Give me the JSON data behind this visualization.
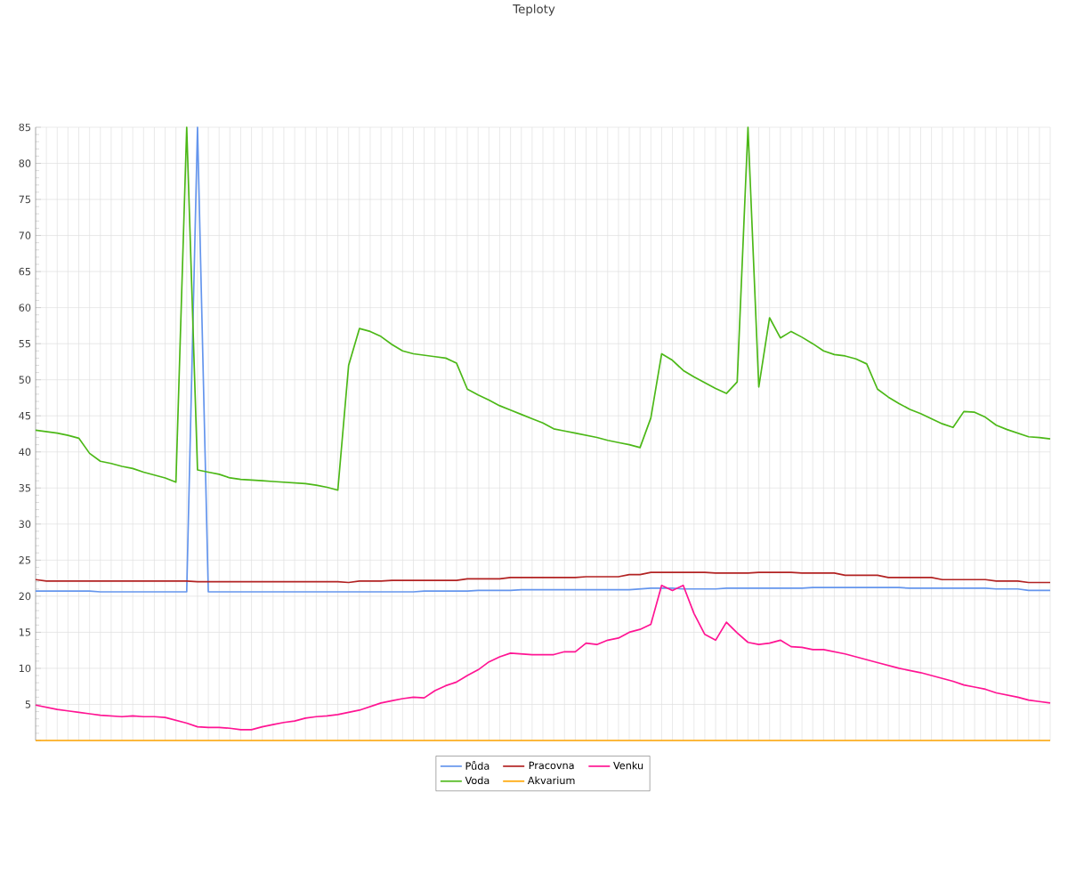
{
  "chart_data": {
    "type": "line",
    "title": "Teploty",
    "ylim": [
      0,
      85
    ],
    "yticks": [
      {
        "value": 0,
        "label": null
      },
      5,
      10,
      15,
      20,
      25,
      30,
      35,
      40,
      45,
      50,
      55,
      60,
      65,
      70,
      75,
      80,
      85
    ],
    "categories": [
      null,
      null,
      null,
      null,
      null,
      null,
      null,
      null,
      null,
      null,
      null,
      null,
      null,
      null,
      null,
      null,
      null,
      null,
      null,
      null,
      null,
      null,
      null,
      null,
      null,
      null,
      null,
      null,
      null,
      null,
      null,
      null,
      null,
      null,
      null,
      null,
      null,
      null,
      null,
      null,
      null,
      null,
      null,
      null,
      null,
      null,
      null,
      null,
      null,
      null,
      null,
      null,
      null,
      null,
      null,
      null,
      null,
      null,
      null,
      null,
      null,
      null,
      null,
      null,
      null,
      null,
      null,
      null,
      null,
      null,
      null,
      null,
      null,
      null,
      null,
      null,
      null,
      null,
      null,
      null,
      null,
      null,
      null,
      null,
      null,
      null,
      null,
      null,
      null,
      null,
      null,
      null,
      null,
      null,
      null
    ],
    "tick_labels": "y",
    "grid": true,
    "legend": "bottom",
    "marker": "none",
    "line_style": "solid",
    "series": [
      {
        "name": "Půda",
        "color": "#6495ed",
        "values": [
          20.7,
          20.7,
          20.7,
          20.7,
          20.7,
          20.7,
          20.6,
          20.6,
          20.6,
          20.6,
          20.6,
          20.6,
          20.6,
          20.6,
          20.6,
          85,
          20.6,
          20.6,
          20.6,
          20.6,
          20.6,
          20.6,
          20.6,
          20.6,
          20.6,
          20.6,
          20.6,
          20.6,
          20.6,
          20.6,
          20.6,
          20.6,
          20.6,
          20.6,
          20.6,
          20.6,
          20.7,
          20.7,
          20.7,
          20.7,
          20.7,
          20.8,
          20.8,
          20.8,
          20.8,
          20.9,
          20.9,
          20.9,
          20.9,
          20.9,
          20.9,
          20.9,
          20.9,
          20.9,
          20.9,
          20.9,
          21.0,
          21.1,
          21.1,
          21.1,
          21.0,
          21.0,
          21.0,
          21.0,
          21.1,
          21.1,
          21.1,
          21.1,
          21.1,
          21.1,
          21.1,
          21.1,
          21.2,
          21.2,
          21.2,
          21.2,
          21.2,
          21.2,
          21.2,
          21.2,
          21.2,
          21.1,
          21.1,
          21.1,
          21.1,
          21.1,
          21.1,
          21.1,
          21.1,
          21.0,
          21.0,
          21.0,
          20.8,
          20.8,
          20.8
        ]
      },
      {
        "name": "Voda",
        "color": "#4cb817",
        "values": [
          43.0,
          42.8,
          42.6,
          42.3,
          41.9,
          39.8,
          38.7,
          38.4,
          38.0,
          37.7,
          37.2,
          36.8,
          36.4,
          35.8,
          85,
          37.5,
          37.2,
          36.9,
          36.4,
          36.2,
          36.1,
          36.0,
          35.9,
          35.8,
          35.7,
          35.6,
          35.4,
          35.1,
          34.7,
          52.0,
          57.1,
          56.7,
          56.0,
          54.9,
          54.0,
          53.6,
          53.4,
          53.2,
          53.0,
          52.3,
          48.7,
          47.9,
          47.2,
          46.4,
          45.8,
          45.2,
          44.6,
          44.0,
          43.2,
          42.9,
          42.6,
          42.3,
          42.0,
          41.6,
          41.3,
          41.0,
          40.6,
          44.7,
          53.6,
          52.7,
          51.3,
          50.4,
          49.6,
          48.8,
          48.1,
          49.7,
          85,
          49.0,
          58.6,
          55.8,
          56.7,
          55.9,
          55.0,
          54.0,
          53.5,
          53.3,
          52.9,
          52.2,
          48.7,
          47.6,
          46.7,
          45.9,
          45.3,
          44.6,
          43.9,
          43.4,
          45.6,
          45.5,
          44.8,
          43.7,
          43.1,
          42.6,
          42.1,
          42.0,
          41.8
        ]
      },
      {
        "name": "Pracovna",
        "color": "#b22222",
        "values": [
          22.3,
          22.1,
          22.1,
          22.1,
          22.1,
          22.1,
          22.1,
          22.1,
          22.1,
          22.1,
          22.1,
          22.1,
          22.1,
          22.1,
          22.1,
          22.0,
          22.0,
          22.0,
          22.0,
          22.0,
          22.0,
          22.0,
          22.0,
          22.0,
          22.0,
          22.0,
          22.0,
          22.0,
          22.0,
          21.9,
          22.1,
          22.1,
          22.1,
          22.2,
          22.2,
          22.2,
          22.2,
          22.2,
          22.2,
          22.2,
          22.4,
          22.4,
          22.4,
          22.4,
          22.6,
          22.6,
          22.6,
          22.6,
          22.6,
          22.6,
          22.6,
          22.7,
          22.7,
          22.7,
          22.7,
          23.0,
          23.0,
          23.3,
          23.3,
          23.3,
          23.3,
          23.3,
          23.3,
          23.2,
          23.2,
          23.2,
          23.2,
          23.3,
          23.3,
          23.3,
          23.3,
          23.2,
          23.2,
          23.2,
          23.2,
          22.9,
          22.9,
          22.9,
          22.9,
          22.6,
          22.6,
          22.6,
          22.6,
          22.6,
          22.3,
          22.3,
          22.3,
          22.3,
          22.3,
          22.1,
          22.1,
          22.1,
          21.9,
          21.9,
          21.9
        ]
      },
      {
        "name": "Akvarium",
        "color": "#ffa500",
        "values": [
          0,
          0,
          0,
          0,
          0,
          0,
          0,
          0,
          0,
          0,
          0,
          0,
          0,
          0,
          0,
          0,
          0,
          0,
          0,
          0,
          0,
          0,
          0,
          0,
          0,
          0,
          0,
          0,
          0,
          0,
          0,
          0,
          0,
          0,
          0,
          0,
          0,
          0,
          0,
          0,
          0,
          0,
          0,
          0,
          0,
          0,
          0,
          0,
          0,
          0,
          0,
          0,
          0,
          0,
          0,
          0,
          0,
          0,
          0,
          0,
          0,
          0,
          0,
          0,
          0,
          0,
          0,
          0,
          0,
          0,
          0,
          0,
          0,
          0,
          0,
          0,
          0,
          0,
          0,
          0,
          0,
          0,
          0,
          0,
          0,
          0,
          0,
          0,
          0,
          0,
          0,
          0,
          0,
          0,
          0
        ]
      },
      {
        "name": "Venku",
        "color": "#ff1493",
        "values": [
          4.9,
          4.6,
          4.3,
          4.1,
          3.9,
          3.7,
          3.5,
          3.4,
          3.3,
          3.4,
          3.3,
          3.3,
          3.2,
          2.8,
          2.4,
          1.9,
          1.8,
          1.8,
          1.7,
          1.5,
          1.5,
          1.9,
          2.2,
          2.5,
          2.7,
          3.1,
          3.3,
          3.4,
          3.6,
          3.9,
          4.2,
          4.7,
          5.2,
          5.5,
          5.8,
          6.0,
          5.9,
          6.9,
          7.6,
          8.1,
          9.0,
          9.8,
          10.9,
          11.6,
          12.1,
          12.0,
          11.9,
          11.9,
          11.9,
          12.3,
          12.3,
          13.5,
          13.3,
          13.9,
          14.2,
          15.0,
          15.4,
          16.1,
          21.5,
          20.8,
          21.5,
          17.6,
          14.7,
          13.9,
          16.4,
          14.9,
          13.6,
          13.3,
          13.5,
          13.9,
          13.0,
          12.9,
          12.6,
          12.6,
          12.3,
          12.0,
          11.6,
          11.2,
          10.8,
          10.4,
          10.0,
          9.7,
          9.4,
          9.0,
          8.6,
          8.2,
          7.7,
          7.4,
          7.1,
          6.6,
          6.3,
          6.0,
          5.6,
          5.4,
          5.2
        ]
      }
    ]
  }
}
